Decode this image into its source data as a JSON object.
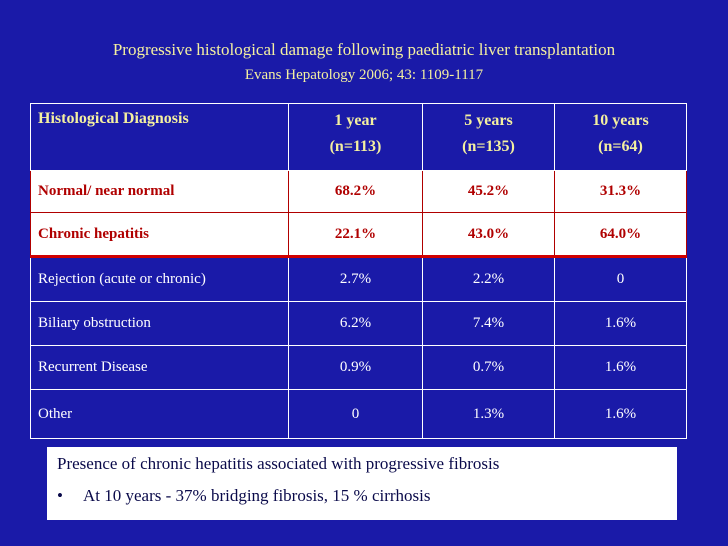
{
  "slide": {
    "title": "Progressive histological damage following paediatric liver transplantation",
    "subtitle": "Evans Hepatology 2006; 43: 1109-1117"
  },
  "table": {
    "headers": [
      {
        "line1": "Histological Diagnosis",
        "line2": ""
      },
      {
        "line1": "1 year",
        "line2": "(n=113)"
      },
      {
        "line1": "5 years",
        "line2": "(n=135)"
      },
      {
        "line1": "10 years",
        "line2": "(n=64)"
      }
    ],
    "rows": [
      {
        "diagnosis": "Normal/ near normal",
        "y1": "68.2%",
        "y5": "45.2%",
        "y10": "31.3%"
      },
      {
        "diagnosis": "Chronic hepatitis",
        "y1": "22.1%",
        "y5": "43.0%",
        "y10": "64.0%"
      },
      {
        "diagnosis": "Rejection (acute or chronic)",
        "y1": "2.7%",
        "y5": "2.2%",
        "y10": "0"
      },
      {
        "diagnosis": "Biliary obstruction",
        "y1": "6.2%",
        "y5": "7.4%",
        "y10": "1.6%"
      },
      {
        "diagnosis": "Recurrent Disease",
        "y1": "0.9%",
        "y5": "0.7%",
        "y10": "1.6%"
      },
      {
        "diagnosis": "Other",
        "y1": "0",
        "y5": "1.3%",
        "y10": "1.6%"
      }
    ]
  },
  "note": {
    "line1": "Presence of chronic hepatitis associated with progressive fibrosis",
    "bullet": "•",
    "line2": "At 10 years - 37% bridging fibrosis, 15 % cirrhosis"
  },
  "colors": {
    "background": "#1a1aa8",
    "header_text": "#f4f0a0",
    "highlight_text": "#b00000"
  }
}
